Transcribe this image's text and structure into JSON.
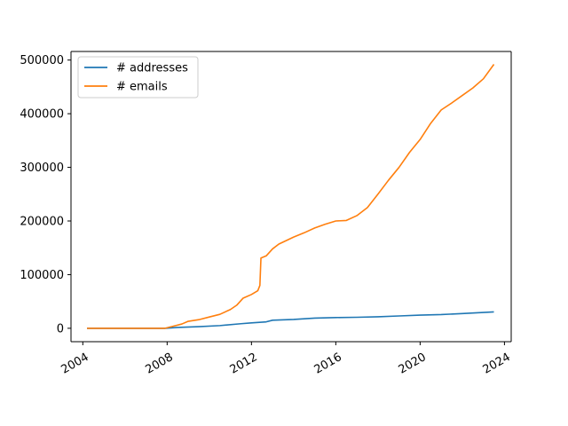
{
  "chart_data": {
    "type": "line",
    "title": "",
    "xlabel": "",
    "ylabel": "",
    "xlim": [
      2004.0,
      2024.0
    ],
    "ylim": [
      0,
      500000
    ],
    "x_ticks": [
      2004,
      2008,
      2012,
      2016,
      2020,
      2024
    ],
    "x_tick_labels": [
      "2004",
      "2008",
      "2012",
      "2016",
      "2020",
      "2024"
    ],
    "y_ticks": [
      0,
      100000,
      200000,
      300000,
      400000,
      500000
    ],
    "y_tick_labels": [
      "0",
      "100000",
      "200000",
      "300000",
      "400000",
      "500000"
    ],
    "grid": false,
    "legend": {
      "position": "top-left"
    },
    "series": [
      {
        "name": "# addresses",
        "color": "#1f77b4",
        "points": [
          [
            2004.2,
            0
          ],
          [
            2007.9,
            0
          ],
          [
            2008.5,
            1500
          ],
          [
            2009.5,
            3000
          ],
          [
            2010.5,
            5000
          ],
          [
            2011.5,
            8500
          ],
          [
            2012.0,
            10000
          ],
          [
            2012.7,
            12000
          ],
          [
            2013.0,
            15000
          ],
          [
            2014.0,
            16500
          ],
          [
            2015.0,
            19000
          ],
          [
            2016.0,
            20000
          ],
          [
            2017.0,
            20500
          ],
          [
            2018.0,
            21500
          ],
          [
            2019.0,
            23000
          ],
          [
            2020.0,
            24500
          ],
          [
            2021.0,
            25500
          ],
          [
            2022.0,
            27500
          ],
          [
            2023.0,
            29500
          ],
          [
            2023.5,
            30500
          ]
        ]
      },
      {
        "name": "# emails",
        "color": "#ff7f0e",
        "points": [
          [
            2004.2,
            0
          ],
          [
            2007.9,
            0
          ],
          [
            2008.3,
            4000
          ],
          [
            2008.7,
            8000
          ],
          [
            2009.0,
            13000
          ],
          [
            2009.5,
            16000
          ],
          [
            2010.0,
            21000
          ],
          [
            2010.5,
            26000
          ],
          [
            2011.0,
            35000
          ],
          [
            2011.3,
            43000
          ],
          [
            2011.6,
            56000
          ],
          [
            2012.0,
            63000
          ],
          [
            2012.3,
            70000
          ],
          [
            2012.4,
            80000
          ],
          [
            2012.45,
            131000
          ],
          [
            2012.7,
            135000
          ],
          [
            2013.0,
            148000
          ],
          [
            2013.3,
            157000
          ],
          [
            2014.0,
            170000
          ],
          [
            2014.5,
            178000
          ],
          [
            2015.0,
            187000
          ],
          [
            2015.5,
            194000
          ],
          [
            2016.0,
            200000
          ],
          [
            2016.5,
            201000
          ],
          [
            2017.0,
            210000
          ],
          [
            2017.5,
            225000
          ],
          [
            2018.0,
            250000
          ],
          [
            2018.5,
            276000
          ],
          [
            2019.0,
            300000
          ],
          [
            2019.5,
            328000
          ],
          [
            2020.0,
            352000
          ],
          [
            2020.5,
            382000
          ],
          [
            2021.0,
            407000
          ],
          [
            2021.5,
            420000
          ],
          [
            2022.0,
            434000
          ],
          [
            2022.5,
            448000
          ],
          [
            2023.0,
            465000
          ],
          [
            2023.5,
            492000
          ]
        ]
      }
    ]
  }
}
